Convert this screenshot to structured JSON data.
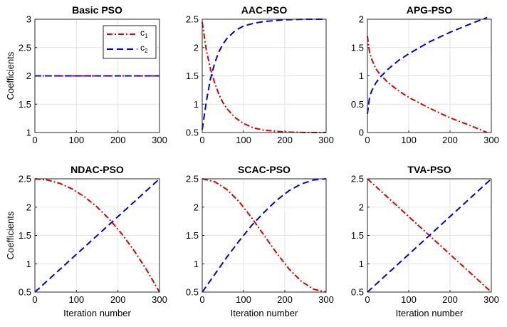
{
  "chart_data": [
    {
      "type": "line",
      "title": "Basic PSO",
      "xlabel": "",
      "ylabel": "Coefficients",
      "xlim": [
        0,
        300
      ],
      "ylim": [
        1,
        3
      ],
      "xticks": [
        0,
        100,
        200,
        300
      ],
      "yticks": [
        1,
        1.5,
        2,
        2.5,
        3
      ],
      "ytick_labels": [
        "1",
        "1.5",
        "2",
        "2.5",
        "3"
      ],
      "grid": true,
      "legend": "top-right",
      "series": [
        {
          "name": "c1",
          "color": "#e00000",
          "style": "dash-dot",
          "x": [
            0,
            300
          ],
          "y": [
            2,
            2
          ]
        },
        {
          "name": "c2",
          "color": "#0000e0",
          "style": "dashed",
          "x": [
            0,
            300
          ],
          "y": [
            2,
            2
          ]
        }
      ]
    },
    {
      "type": "line",
      "title": "AAC-PSO",
      "xlabel": "",
      "ylabel": "",
      "xlim": [
        0,
        300
      ],
      "ylim": [
        0.5,
        2.5
      ],
      "xticks": [
        0,
        100,
        200,
        300
      ],
      "yticks": [
        0.5,
        1,
        1.5,
        2,
        2.5
      ],
      "ytick_labels": [
        "0.5",
        "1",
        "1.5",
        "2",
        "2.5"
      ],
      "grid": true,
      "series": [
        {
          "color": "#e00000",
          "style": "dash-dot",
          "x": [
            0,
            10,
            20,
            30,
            40,
            50,
            60,
            80,
            100,
            125,
            150,
            200,
            250,
            300
          ],
          "y": [
            2.45,
            1.95,
            1.62,
            1.38,
            1.18,
            1.03,
            0.92,
            0.76,
            0.66,
            0.58,
            0.54,
            0.51,
            0.5,
            0.5
          ]
        },
        {
          "color": "#0000e0",
          "style": "dashed",
          "x": [
            0,
            10,
            20,
            30,
            40,
            50,
            60,
            80,
            100,
            125,
            150,
            200,
            250,
            300
          ],
          "y": [
            0.55,
            1.05,
            1.45,
            1.72,
            1.92,
            2.06,
            2.16,
            2.3,
            2.38,
            2.43,
            2.46,
            2.49,
            2.5,
            2.5
          ]
        }
      ]
    },
    {
      "type": "line",
      "title": "APG-PSO",
      "xlabel": "",
      "ylabel": "",
      "xlim": [
        0,
        300
      ],
      "ylim": [
        0,
        2
      ],
      "xticks": [
        0,
        100,
        200,
        300
      ],
      "yticks": [
        0,
        0.5,
        1,
        1.5,
        2
      ],
      "ytick_labels": [
        "0",
        "0.5",
        "1",
        "1.5",
        "2"
      ],
      "grid": true,
      "series": [
        {
          "color": "#e00000",
          "style": "dash-dot",
          "x": [
            0,
            5,
            10,
            20,
            30,
            50,
            75,
            100,
            150,
            200,
            250,
            290
          ],
          "y": [
            1.7,
            1.42,
            1.3,
            1.13,
            1.03,
            0.88,
            0.74,
            0.62,
            0.43,
            0.26,
            0.12,
            0.0
          ]
        },
        {
          "color": "#0000e0",
          "style": "dashed",
          "x": [
            0,
            5,
            10,
            20,
            30,
            50,
            75,
            100,
            150,
            200,
            250,
            290
          ],
          "y": [
            0.33,
            0.62,
            0.73,
            0.87,
            0.97,
            1.12,
            1.27,
            1.39,
            1.6,
            1.77,
            1.92,
            2.03
          ]
        }
      ]
    },
    {
      "type": "line",
      "title": "NDAC-PSO",
      "xlabel": "Iteration number",
      "ylabel": "Coefficients",
      "xlim": [
        0,
        300
      ],
      "ylim": [
        0.5,
        2.5
      ],
      "xticks": [
        0,
        100,
        200,
        300
      ],
      "yticks": [
        0.5,
        1,
        1.5,
        2,
        2.5
      ],
      "ytick_labels": [
        "0.5",
        "1",
        "1.5",
        "2",
        "2.5"
      ],
      "grid": true,
      "series": [
        {
          "color": "#e00000",
          "style": "dash-dot",
          "x": [
            0,
            30,
            60,
            90,
            120,
            150,
            180,
            210,
            240,
            270,
            300
          ],
          "y": [
            2.5,
            2.48,
            2.42,
            2.32,
            2.18,
            2.0,
            1.78,
            1.52,
            1.22,
            0.88,
            0.5
          ]
        },
        {
          "color": "#0000e0",
          "style": "dashed",
          "x": [
            0,
            300
          ],
          "y": [
            0.5,
            2.5
          ]
        }
      ]
    },
    {
      "type": "line",
      "title": "SCAC-PSO",
      "xlabel": "Iteration number",
      "ylabel": "",
      "xlim": [
        0,
        300
      ],
      "ylim": [
        0.5,
        2.5
      ],
      "xticks": [
        0,
        100,
        200,
        300
      ],
      "yticks": [
        0.5,
        1,
        1.5,
        2,
        2.5
      ],
      "ytick_labels": [
        "0.5",
        "1",
        "1.5",
        "2",
        "2.5"
      ],
      "grid": true,
      "series": [
        {
          "color": "#e00000",
          "style": "dash-dot",
          "x": [
            0,
            30,
            60,
            90,
            120,
            150,
            180,
            210,
            240,
            270,
            300
          ],
          "y": [
            2.5,
            2.45,
            2.31,
            2.09,
            1.81,
            1.5,
            1.19,
            0.91,
            0.69,
            0.55,
            0.5
          ]
        },
        {
          "color": "#0000e0",
          "style": "dashed",
          "x": [
            0,
            30,
            60,
            90,
            120,
            150,
            180,
            210,
            240,
            270,
            300
          ],
          "y": [
            0.5,
            0.81,
            1.12,
            1.41,
            1.68,
            1.91,
            2.12,
            2.29,
            2.41,
            2.48,
            2.5
          ]
        }
      ]
    },
    {
      "type": "line",
      "title": "TVA-PSO",
      "xlabel": "Iteration number",
      "ylabel": "",
      "xlim": [
        0,
        300
      ],
      "ylim": [
        0.5,
        2.5
      ],
      "xticks": [
        0,
        100,
        200,
        300
      ],
      "yticks": [
        0.5,
        1,
        1.5,
        2,
        2.5
      ],
      "ytick_labels": [
        "0.5",
        "1",
        "1.5",
        "2",
        "2.5"
      ],
      "grid": true,
      "series": [
        {
          "color": "#e00000",
          "style": "dash-dot",
          "x": [
            0,
            300
          ],
          "y": [
            2.5,
            0.5
          ]
        },
        {
          "color": "#0000e0",
          "style": "dashed",
          "x": [
            0,
            300
          ],
          "y": [
            0.5,
            2.5
          ]
        }
      ]
    }
  ],
  "legend": {
    "entries": [
      {
        "label": "c",
        "subscript": "1",
        "color": "#e00000",
        "style": "dash-dot"
      },
      {
        "label": "c",
        "subscript": "2",
        "color": "#0000e0",
        "style": "dashed"
      }
    ]
  }
}
